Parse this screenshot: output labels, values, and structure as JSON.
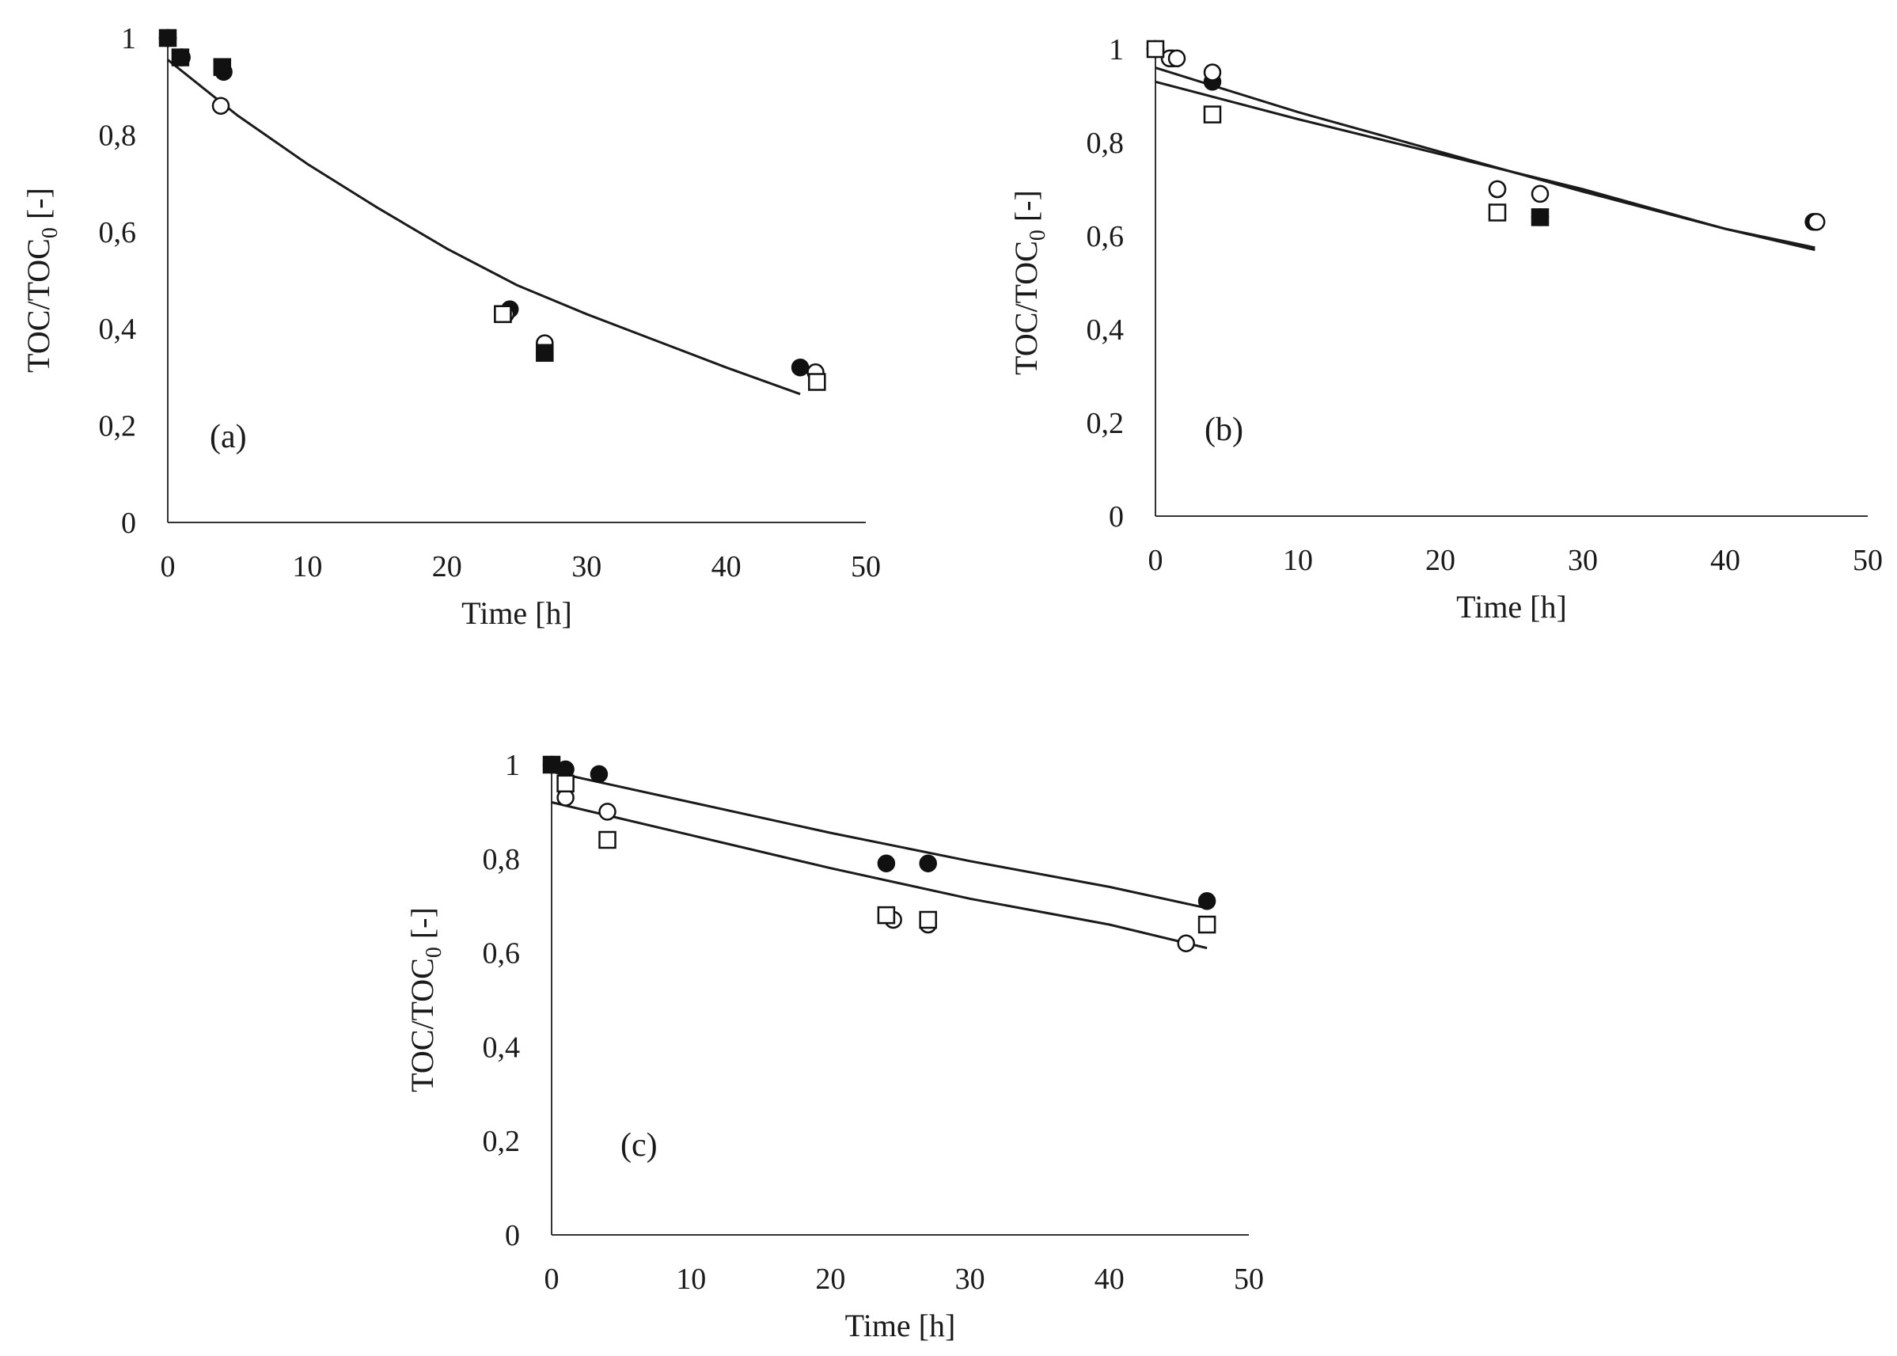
{
  "chart_data": [
    {
      "type": "scatter",
      "panel_label": "(a)",
      "xlabel": "Time [h]",
      "ylabel": {
        "main": "TOC/TOC",
        "sub": "0",
        "suffix": " [-]"
      },
      "xlim": [
        0,
        50
      ],
      "ylim": [
        0,
        1
      ],
      "xticks": [
        "0",
        "10",
        "20",
        "30",
        "40",
        "50"
      ],
      "yticks": [
        "0",
        "0,2",
        "0,4",
        "0,6",
        "0,8",
        "1"
      ],
      "series": [
        {
          "name": "filled-circle",
          "marker": "circle",
          "fill": "filled",
          "x": [
            0,
            1,
            4,
            24.5,
            27,
            45.3
          ],
          "y": [
            1.0,
            0.96,
            0.93,
            0.44,
            0.35,
            0.32
          ]
        },
        {
          "name": "open-circle",
          "marker": "circle",
          "fill": "open",
          "x": [
            0,
            1,
            3.8,
            24.2,
            27,
            46.4
          ],
          "y": [
            1.0,
            0.96,
            0.86,
            0.43,
            0.37,
            0.31
          ]
        },
        {
          "name": "filled-square",
          "marker": "square",
          "fill": "filled",
          "x": [
            0,
            0.9,
            3.9,
            24,
            27
          ],
          "y": [
            1.0,
            0.96,
            0.94,
            0.43,
            0.35
          ]
        },
        {
          "name": "open-square",
          "marker": "square",
          "fill": "open",
          "x": [
            24,
            46.5
          ],
          "y": [
            0.43,
            0.29
          ]
        }
      ],
      "fits": [
        {
          "x": [
            0,
            5,
            10,
            15,
            20,
            25,
            30,
            35,
            40,
            45.3
          ],
          "y": [
            0.955,
            0.84,
            0.74,
            0.65,
            0.565,
            0.49,
            0.43,
            0.375,
            0.32,
            0.265
          ]
        }
      ]
    },
    {
      "type": "scatter",
      "panel_label": "(b)",
      "xlabel": "Time [h]",
      "ylabel": {
        "main": "TOC/TOC",
        "sub": "0",
        "suffix": " [-]"
      },
      "xlim": [
        0,
        50
      ],
      "ylim": [
        0,
        1
      ],
      "xticks": [
        "0",
        "10",
        "20",
        "30",
        "40",
        "50"
      ],
      "yticks": [
        "0",
        "0,2",
        "0,4",
        "0,6",
        "0,8",
        "1"
      ],
      "series": [
        {
          "name": "filled-circle",
          "marker": "circle",
          "fill": "filled",
          "x": [
            0,
            1.2,
            4,
            24,
            27,
            46.2
          ],
          "y": [
            1.0,
            0.98,
            0.93,
            0.7,
            0.64,
            0.63
          ]
        },
        {
          "name": "open-circle",
          "marker": "circle",
          "fill": "open",
          "x": [
            0,
            1,
            1.5,
            4,
            24,
            27,
            46.4
          ],
          "y": [
            1.0,
            0.98,
            0.98,
            0.95,
            0.7,
            0.69,
            0.63
          ]
        },
        {
          "name": "filled-square",
          "marker": "square",
          "fill": "filled",
          "x": [
            27
          ],
          "y": [
            0.64
          ]
        },
        {
          "name": "open-square",
          "marker": "square",
          "fill": "open",
          "x": [
            0,
            4,
            24
          ],
          "y": [
            1.0,
            0.86,
            0.65
          ]
        }
      ],
      "fits": [
        {
          "x": [
            0,
            10,
            20,
            30,
            40,
            46.3
          ],
          "y": [
            0.96,
            0.865,
            0.78,
            0.695,
            0.615,
            0.57
          ]
        },
        {
          "x": [
            0,
            10,
            20,
            30,
            40,
            46.3
          ],
          "y": [
            0.93,
            0.85,
            0.775,
            0.7,
            0.615,
            0.575
          ]
        }
      ]
    },
    {
      "type": "scatter",
      "panel_label": "(c)",
      "xlabel": "Time [h]",
      "ylabel": {
        "main": "TOC/TOC",
        "sub": "0",
        "suffix": " [-]"
      },
      "xlim": [
        0,
        50
      ],
      "ylim": [
        0,
        1
      ],
      "xticks": [
        "0",
        "10",
        "20",
        "30",
        "40",
        "50"
      ],
      "yticks": [
        "0",
        "0,2",
        "0,4",
        "0,6",
        "0,8",
        "1"
      ],
      "series": [
        {
          "name": "filled-circle",
          "marker": "circle",
          "fill": "filled",
          "x": [
            0,
            1,
            3.4,
            24,
            27,
            47
          ],
          "y": [
            1.0,
            0.99,
            0.98,
            0.79,
            0.79,
            0.71
          ]
        },
        {
          "name": "open-circle",
          "marker": "circle",
          "fill": "open",
          "x": [
            1,
            4,
            24.5,
            27,
            45.5
          ],
          "y": [
            0.93,
            0.9,
            0.67,
            0.66,
            0.62
          ]
        },
        {
          "name": "filled-square",
          "marker": "square",
          "fill": "filled",
          "x": [
            0
          ],
          "y": [
            1.0
          ]
        },
        {
          "name": "open-square",
          "marker": "square",
          "fill": "open",
          "x": [
            1,
            4,
            24,
            27,
            47
          ],
          "y": [
            0.96,
            0.84,
            0.68,
            0.67,
            0.66
          ]
        }
      ],
      "fits": [
        {
          "x": [
            0,
            10,
            20,
            30,
            40,
            47
          ],
          "y": [
            0.985,
            0.92,
            0.855,
            0.795,
            0.74,
            0.695
          ]
        },
        {
          "x": [
            0,
            10,
            20,
            30,
            40,
            47
          ],
          "y": [
            0.92,
            0.85,
            0.78,
            0.715,
            0.66,
            0.61
          ]
        }
      ]
    }
  ]
}
